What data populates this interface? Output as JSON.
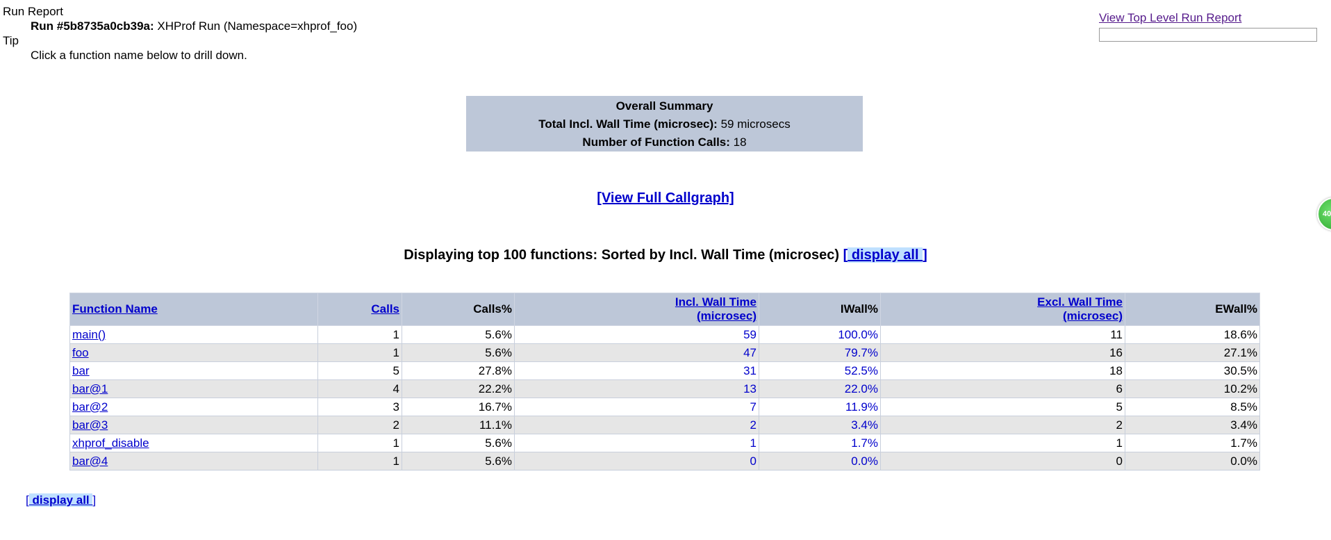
{
  "header": {
    "run_report_label": "Run Report",
    "run_id_label": "Run #5b8735a0cb39a:",
    "run_desc": "XHProf Run (Namespace=xhprof_foo)",
    "tip_label": "Tip",
    "tip_text": "Click a function name below to drill down."
  },
  "top_right": {
    "link_text": "View Top Level Run Report"
  },
  "summary": {
    "title": "Overall Summary",
    "wall_time_label": "Total Incl. Wall Time (microsec):",
    "wall_time_value": "59 microsecs",
    "calls_label": "Number of Function Calls:",
    "calls_value": "18"
  },
  "callgraph_link": "[View Full Callgraph]",
  "display": {
    "heading": "Displaying top 100 functions: Sorted by Incl. Wall Time (microsec)",
    "open_bracket": "[",
    "display_all": " display all ",
    "close_bracket": "]",
    "bottom_open": "[",
    "bottom_display_all": " display all ",
    "bottom_close": "]"
  },
  "table": {
    "headers": {
      "function_name": "Function Name",
      "calls": "Calls",
      "calls_pct": "Calls%",
      "incl_wall_1": "Incl. Wall Time",
      "incl_wall_2": "(microsec)",
      "iwall_pct": "IWall%",
      "excl_wall_1": "Excl. Wall Time",
      "excl_wall_2": "(microsec)",
      "ewall_pct": "EWall%"
    },
    "rows": [
      {
        "name": "main()",
        "calls": "1",
        "calls_pct": "5.6%",
        "incl": "59",
        "iwall": "100.0%",
        "excl": "11",
        "ewall": "18.6%"
      },
      {
        "name": "foo",
        "calls": "1",
        "calls_pct": "5.6%",
        "incl": "47",
        "iwall": "79.7%",
        "excl": "16",
        "ewall": "27.1%"
      },
      {
        "name": "bar",
        "calls": "5",
        "calls_pct": "27.8%",
        "incl": "31",
        "iwall": "52.5%",
        "excl": "18",
        "ewall": "30.5%"
      },
      {
        "name": "bar@1",
        "calls": "4",
        "calls_pct": "22.2%",
        "incl": "13",
        "iwall": "22.0%",
        "excl": "6",
        "ewall": "10.2%"
      },
      {
        "name": "bar@2",
        "calls": "3",
        "calls_pct": "16.7%",
        "incl": "7",
        "iwall": "11.9%",
        "excl": "5",
        "ewall": "8.5%"
      },
      {
        "name": "bar@3",
        "calls": "2",
        "calls_pct": "11.1%",
        "incl": "2",
        "iwall": "3.4%",
        "excl": "2",
        "ewall": "3.4%"
      },
      {
        "name": "xhprof_disable",
        "calls": "1",
        "calls_pct": "5.6%",
        "incl": "1",
        "iwall": "1.7%",
        "excl": "1",
        "ewall": "1.7%"
      },
      {
        "name": "bar@4",
        "calls": "1",
        "calls_pct": "5.6%",
        "incl": "0",
        "iwall": "0.0%",
        "excl": "0",
        "ewall": "0.0%"
      }
    ]
  },
  "badge": {
    "text": "40",
    "color": "#2aa52a"
  }
}
